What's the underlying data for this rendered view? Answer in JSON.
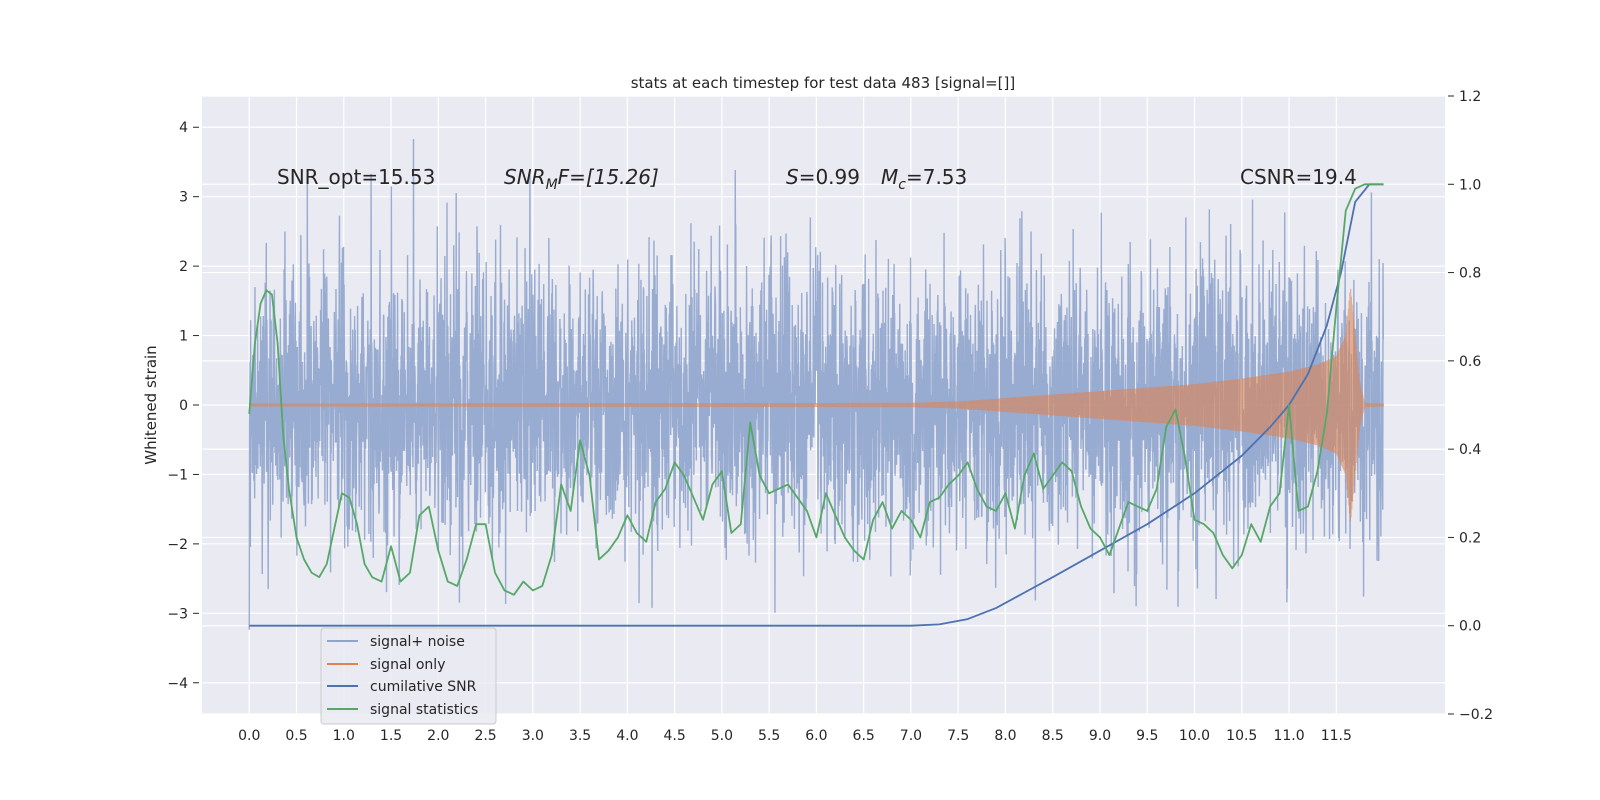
{
  "chart_data": {
    "type": "line",
    "title": "stats at each timestep for test data 483 [signal=[]]",
    "ylabel": "Whitened strain",
    "xlabel": "",
    "xlim": [
      -0.5,
      12.65
    ],
    "ylim": [
      -4.45,
      4.45
    ],
    "y2lim": [
      -0.2,
      1.2
    ],
    "xticks": [
      "0.0",
      "0.5",
      "1.0",
      "1.5",
      "2.0",
      "2.5",
      "3.0",
      "3.5",
      "4.0",
      "4.5",
      "5.0",
      "5.5",
      "6.0",
      "6.5",
      "7.0",
      "7.5",
      "8.0",
      "8.5",
      "9.0",
      "9.5",
      "10.0",
      "10.5",
      "11.0",
      "11.5"
    ],
    "yticks": [
      "4",
      "3",
      "2",
      "1",
      "0",
      "−1",
      "−2",
      "−3",
      "−4"
    ],
    "y2ticks": [
      "1.2",
      "1.0",
      "0.8",
      "0.6",
      "0.4",
      "0.2",
      "0.0",
      "−0.2"
    ],
    "grid": true,
    "legend_position": "lower-left",
    "annotations": {
      "snr_opt": "SNR_opt=15.53",
      "snr_mf_main": "SNR",
      "snr_mf_sub": "M",
      "snr_mf_rest": "F=[15.26]",
      "s_main": "S",
      "s_rest": "=0.99",
      "mc_main": "M",
      "mc_sub": "c",
      "mc_rest": "=7.53",
      "csnr": "CSNR=19.4"
    },
    "series": [
      {
        "name": "signal+ noise",
        "color": "#8fa4cc",
        "axis": "left",
        "noise_envelope": {
          "x_start": 0.0,
          "x_end": 12.0,
          "typical_amplitude": 1.8,
          "peak_max": 4.05,
          "peak_min": -4.05
        }
      },
      {
        "name": "signal only",
        "color": "#dd8452",
        "axis": "left",
        "x": [
          0.0,
          7.0,
          7.5,
          8.0,
          8.5,
          9.0,
          9.5,
          10.0,
          10.5,
          11.0,
          11.3,
          11.5,
          11.6,
          11.65,
          11.7,
          11.75,
          11.8,
          12.0
        ],
        "amplitude": [
          0.02,
          0.03,
          0.05,
          0.1,
          0.15,
          0.2,
          0.25,
          0.3,
          0.38,
          0.48,
          0.58,
          0.7,
          1.0,
          1.7,
          1.0,
          0.3,
          0.03,
          0.02
        ]
      },
      {
        "name": "cumilative SNR",
        "color": "#4c72b0",
        "axis": "right",
        "x": [
          0.0,
          6.5,
          7.0,
          7.3,
          7.6,
          7.9,
          8.2,
          8.5,
          9.0,
          9.5,
          10.0,
          10.5,
          10.8,
          11.0,
          11.2,
          11.4,
          11.55,
          11.7,
          11.85,
          12.0
        ],
        "y": [
          0.0,
          0.0,
          0.0,
          0.003,
          0.015,
          0.04,
          0.075,
          0.11,
          0.17,
          0.23,
          0.3,
          0.385,
          0.45,
          0.5,
          0.57,
          0.68,
          0.8,
          0.96,
          1.0,
          1.0
        ]
      },
      {
        "name": "signal statistics",
        "color": "#55a868",
        "axis": "right",
        "x": [
          0.0,
          0.06,
          0.12,
          0.18,
          0.24,
          0.3,
          0.36,
          0.42,
          0.5,
          0.58,
          0.66,
          0.74,
          0.82,
          0.9,
          0.98,
          1.06,
          1.14,
          1.22,
          1.3,
          1.4,
          1.5,
          1.6,
          1.7,
          1.8,
          1.9,
          2.0,
          2.1,
          2.2,
          2.3,
          2.4,
          2.5,
          2.6,
          2.7,
          2.8,
          2.9,
          3.0,
          3.1,
          3.2,
          3.3,
          3.4,
          3.5,
          3.6,
          3.7,
          3.8,
          3.9,
          4.0,
          4.1,
          4.2,
          4.3,
          4.4,
          4.5,
          4.6,
          4.7,
          4.8,
          4.9,
          5.0,
          5.1,
          5.2,
          5.3,
          5.4,
          5.5,
          5.6,
          5.7,
          5.8,
          5.9,
          6.0,
          6.1,
          6.2,
          6.3,
          6.4,
          6.5,
          6.6,
          6.7,
          6.8,
          6.9,
          7.0,
          7.1,
          7.2,
          7.3,
          7.4,
          7.5,
          7.6,
          7.7,
          7.8,
          7.9,
          8.0,
          8.1,
          8.2,
          8.3,
          8.4,
          8.5,
          8.6,
          8.7,
          8.8,
          8.9,
          9.0,
          9.1,
          9.2,
          9.3,
          9.4,
          9.5,
          9.6,
          9.7,
          9.8,
          9.9,
          10.0,
          10.1,
          10.2,
          10.3,
          10.4,
          10.5,
          10.6,
          10.7,
          10.8,
          10.9,
          11.0,
          11.1,
          11.2,
          11.3,
          11.4,
          11.5,
          11.6,
          11.7,
          11.8,
          11.9,
          12.0
        ],
        "y": [
          0.48,
          0.64,
          0.73,
          0.76,
          0.75,
          0.64,
          0.43,
          0.31,
          0.2,
          0.15,
          0.12,
          0.11,
          0.14,
          0.22,
          0.3,
          0.29,
          0.23,
          0.14,
          0.11,
          0.1,
          0.18,
          0.1,
          0.12,
          0.25,
          0.27,
          0.17,
          0.1,
          0.09,
          0.15,
          0.23,
          0.23,
          0.12,
          0.08,
          0.07,
          0.1,
          0.08,
          0.09,
          0.16,
          0.32,
          0.26,
          0.42,
          0.34,
          0.15,
          0.17,
          0.2,
          0.25,
          0.21,
          0.19,
          0.28,
          0.31,
          0.37,
          0.34,
          0.29,
          0.24,
          0.32,
          0.35,
          0.21,
          0.23,
          0.46,
          0.34,
          0.3,
          0.31,
          0.32,
          0.29,
          0.26,
          0.2,
          0.3,
          0.25,
          0.2,
          0.17,
          0.15,
          0.24,
          0.28,
          0.22,
          0.26,
          0.24,
          0.2,
          0.28,
          0.29,
          0.32,
          0.34,
          0.37,
          0.31,
          0.27,
          0.26,
          0.3,
          0.22,
          0.34,
          0.39,
          0.31,
          0.34,
          0.37,
          0.35,
          0.27,
          0.22,
          0.2,
          0.16,
          0.22,
          0.28,
          0.27,
          0.26,
          0.31,
          0.45,
          0.49,
          0.38,
          0.24,
          0.23,
          0.21,
          0.16,
          0.13,
          0.16,
          0.23,
          0.19,
          0.27,
          0.3,
          0.5,
          0.26,
          0.27,
          0.35,
          0.48,
          0.72,
          0.94,
          0.99,
          1.0,
          1.0,
          1.0
        ]
      }
    ]
  }
}
